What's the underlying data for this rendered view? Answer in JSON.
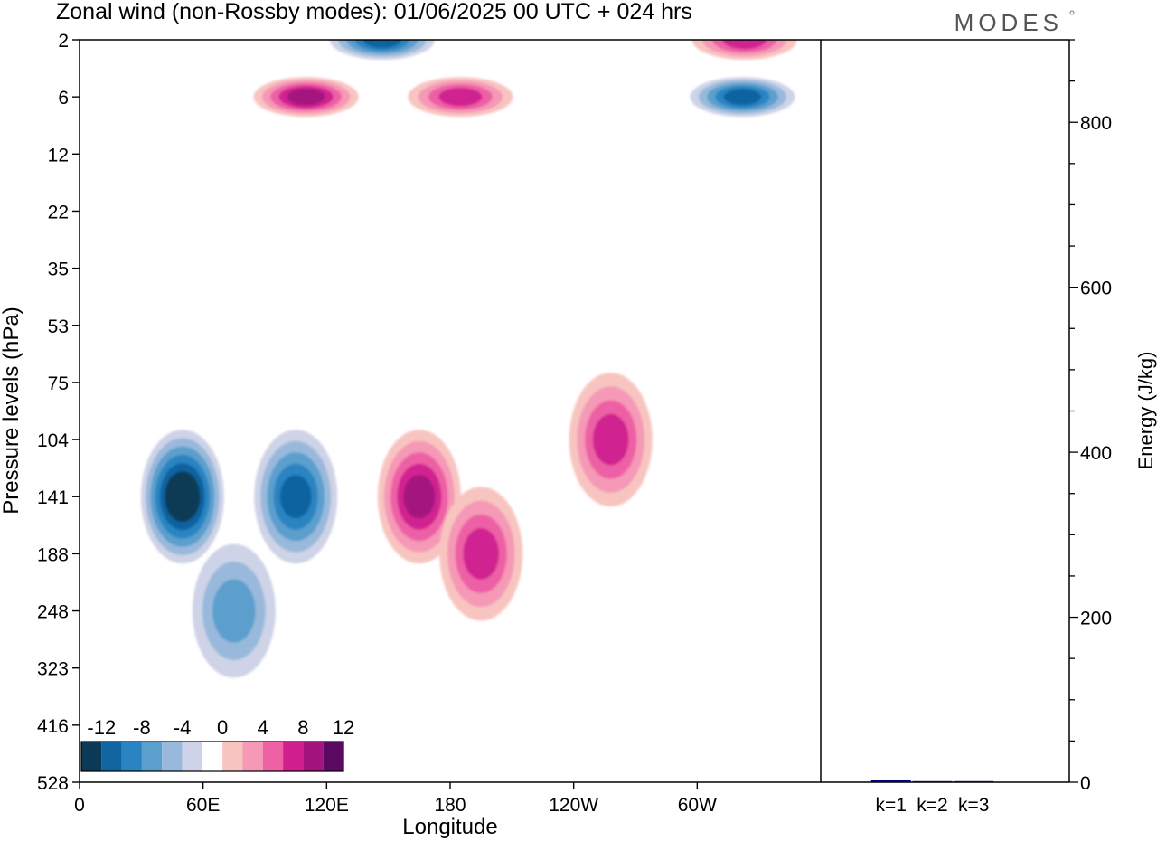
{
  "title": "Zonal wind (non-Rossby modes):  01/06/2025  00 UTC  + 024 hrs",
  "logo": "MODES",
  "chart_data": [
    {
      "type": "heatmap",
      "title": "Zonal wind (non-Rossby modes):  01/06/2025  00 UTC  + 024 hrs",
      "xlabel": "Longitude",
      "ylabel": "Pressure levels (hPa)",
      "x_ticks": [
        "0",
        "60E",
        "120E",
        "180",
        "120W",
        "60W"
      ],
      "x_tick_values": [
        0,
        60,
        120,
        180,
        240,
        300
      ],
      "xlim": [
        0,
        360
      ],
      "y_ticks": [
        "2",
        "6",
        "12",
        "22",
        "35",
        "53",
        "75",
        "104",
        "141",
        "188",
        "248",
        "323",
        "416",
        "528"
      ],
      "colorbar": {
        "labels": [
          "-12",
          "-8",
          "-4",
          "0",
          "4",
          "8",
          "12"
        ],
        "levels": [
          -14,
          -12,
          -10,
          -8,
          -6,
          -4,
          -2,
          2,
          4,
          6,
          8,
          10,
          12,
          14
        ],
        "colors": [
          "#0b3a57",
          "#1064a0",
          "#2a84c2",
          "#5b9fcd",
          "#98b9db",
          "#cfd3e7",
          "#ffffff",
          "#f8c4c0",
          "#f599b6",
          "#ee61a5",
          "#d02090",
          "#a4147e",
          "#5a0a63"
        ]
      },
      "features": [
        {
          "sign": "negative",
          "lon": 50,
          "level": "141",
          "peak": -14
        },
        {
          "sign": "negative",
          "lon": 105,
          "level": "141",
          "peak": -10
        },
        {
          "sign": "negative",
          "lon": 75,
          "level": "248",
          "peak": -6
        },
        {
          "sign": "negative",
          "lon": 147,
          "level": "2",
          "peak": -10
        },
        {
          "sign": "negative",
          "lon": 322,
          "level": "6",
          "peak": -10
        },
        {
          "sign": "positive",
          "lon": 165,
          "level": "141",
          "peak": 10
        },
        {
          "sign": "positive",
          "lon": 195,
          "level": "188",
          "peak": 8
        },
        {
          "sign": "positive",
          "lon": 258,
          "level": "104",
          "peak": 8
        },
        {
          "sign": "positive",
          "lon": 110,
          "level": "6",
          "peak": 10
        },
        {
          "sign": "positive",
          "lon": 185,
          "level": "6",
          "peak": 8
        },
        {
          "sign": "positive",
          "lon": 323,
          "level": "2",
          "peak": 8
        }
      ]
    },
    {
      "type": "bar",
      "ylabel": "Energy (J/kg)",
      "categories": [
        "k=1",
        "k=2",
        "k=3"
      ],
      "values": [
        2.5,
        1.2,
        0.6
      ],
      "ylim": [
        0,
        900
      ],
      "y_ticks": [
        0,
        200,
        400,
        600,
        800
      ],
      "bar_color": "#000080"
    }
  ]
}
